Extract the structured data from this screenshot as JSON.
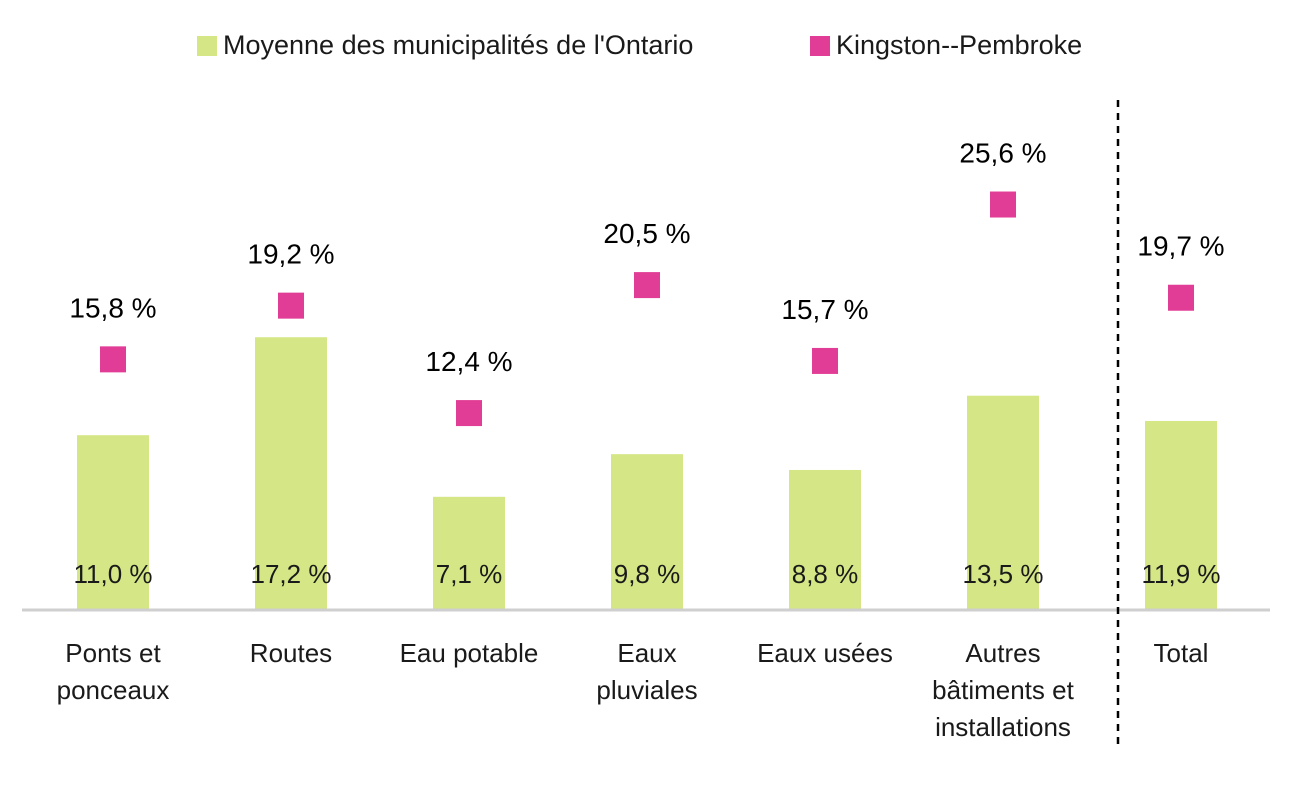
{
  "chart_data": {
    "type": "bar",
    "title": "",
    "xlabel": "",
    "ylabel": "",
    "ylim": [
      0,
      27
    ],
    "grid": false,
    "legend_position": "top",
    "categories": [
      "Ponts et\nponceaux",
      "Routes",
      "Eau potable",
      "Eaux\npluviales",
      "Eaux usées",
      "Autres\nbâtiments et\ninstallations",
      "Total"
    ],
    "series": [
      {
        "name": "Moyenne des municipalités de l'Ontario",
        "mark": "bar",
        "color": "#d4e685",
        "values": [
          11.0,
          17.2,
          7.1,
          9.8,
          8.8,
          13.5,
          11.9
        ],
        "labels": [
          "11,0 %",
          "17,2 %",
          "7,1 %",
          "9,8 %",
          "8,8 %",
          "13,5 %",
          "11,9 %"
        ]
      },
      {
        "name": "Kingston--Pembroke",
        "mark": "square",
        "color": "#e23d96",
        "values": [
          15.8,
          19.2,
          12.4,
          20.5,
          15.7,
          25.6,
          19.7
        ],
        "labels": [
          "15,8 %",
          "19,2 %",
          "12,4 %",
          "20,5 %",
          "15,7 %",
          "25,6 %",
          "19,7 %"
        ]
      }
    ],
    "separator_before_category": "Total"
  },
  "legend": {
    "item1": "Moyenne des municipalités de l'Ontario",
    "item2": "Kingston--Pembroke"
  }
}
